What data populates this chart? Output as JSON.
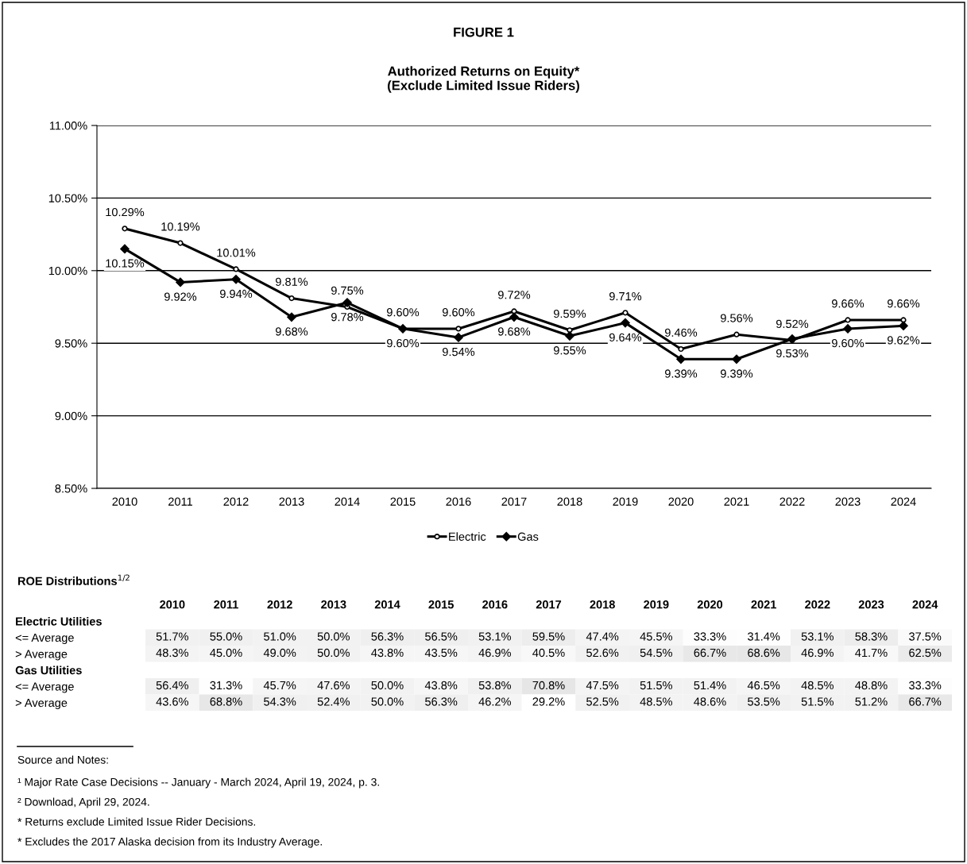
{
  "chart_data": [
    {
      "type": "line",
      "title": "FIGURE 1",
      "subtitle": "Authorized Returns on Equity*\n(Exclude Limited Issue Riders)",
      "categories": [
        "2010",
        "2011",
        "2012",
        "2013",
        "2014",
        "2015",
        "2016",
        "2017",
        "2018",
        "2019",
        "2020",
        "2021",
        "2022",
        "2023",
        "2024"
      ],
      "series": [
        {
          "name": "Electric",
          "color": "#000000",
          "marker": "circle",
          "values": [
            10.29,
            10.19,
            10.01,
            9.81,
            9.75,
            9.6,
            9.6,
            9.72,
            9.59,
            9.71,
            9.46,
            9.56,
            9.52,
            9.66,
            9.66
          ],
          "value_labels": [
            "10.29%",
            "10.19%",
            "10.01%",
            "9.81%",
            "9.75%",
            "9.60%",
            "9.60%",
            "9.72%",
            "9.59%",
            "9.71%",
            "9.46%",
            "9.56%",
            "9.52%",
            "9.66%",
            "9.66%"
          ]
        },
        {
          "name": "Gas",
          "color": "#000000",
          "marker": "diamond",
          "values": [
            10.15,
            9.92,
            9.94,
            9.68,
            9.78,
            9.6,
            9.54,
            9.68,
            9.55,
            9.64,
            9.39,
            9.39,
            9.53,
            9.6,
            9.62
          ],
          "value_labels": [
            "10.15%",
            "9.92%",
            "9.94%",
            "9.68%",
            "9.78%",
            "9.60%",
            "9.54%",
            "9.68%",
            "9.55%",
            "9.64%",
            "9.39%",
            "9.39%",
            "9.53%",
            "9.60%",
            "9.62%"
          ]
        }
      ],
      "ylim": [
        8.5,
        11.0
      ],
      "yticks": [
        {
          "value": 8.5,
          "label": "8.50%"
        },
        {
          "value": 9.0,
          "label": "9.00%"
        },
        {
          "value": 9.5,
          "label": "9.50%"
        },
        {
          "value": 10.0,
          "label": "10.00%"
        },
        {
          "value": 10.5,
          "label": "10.50%"
        },
        {
          "value": 11.0,
          "label": "11.00%"
        }
      ],
      "grid": "y",
      "legend": "bottom",
      "line_style": "solid"
    },
    {
      "type": "heatmap",
      "title": "ROE Distributions$^{1/2}$",
      "categories": [
        "2010",
        "2011",
        "2012",
        "2013",
        "2014",
        "2015",
        "2016",
        "2017",
        "2018",
        "2019",
        "2020",
        "2021",
        "2022",
        "2023",
        "2024"
      ],
      "y_categories": [
        "Electric Utilities",
        "<= Average",
        "> Average",
        "Gas Utilities",
        "<= Average",
        "> Average"
      ],
      "cells": [
        [
          null,
          null,
          null,
          null,
          null,
          null,
          null,
          null,
          null,
          null,
          null,
          null,
          null,
          null,
          null
        ],
        [
          51.7,
          55.0,
          51.0,
          50.0,
          56.3,
          56.5,
          53.1,
          59.5,
          47.4,
          45.5,
          33.3,
          31.4,
          53.1,
          58.3,
          37.5
        ],
        [
          48.3,
          45.0,
          49.0,
          50.0,
          43.8,
          43.5,
          46.9,
          40.5,
          52.6,
          54.5,
          66.7,
          68.6,
          46.9,
          41.7,
          62.5
        ],
        [
          null,
          null,
          null,
          null,
          null,
          null,
          null,
          null,
          null,
          null,
          null,
          null,
          null,
          null,
          null
        ],
        [
          56.4,
          31.3,
          45.7,
          47.6,
          50.0,
          43.8,
          53.8,
          70.8,
          47.5,
          51.5,
          51.4,
          46.5,
          48.5,
          48.8,
          33.3
        ],
        [
          43.6,
          68.8,
          54.3,
          52.4,
          50.0,
          56.3,
          46.2,
          29.2,
          52.5,
          48.5,
          48.6,
          53.5,
          51.5,
          51.2,
          66.7
        ]
      ],
      "cell_labels": [
        [
          null,
          null,
          null,
          null,
          null,
          null,
          null,
          null,
          null,
          null,
          null,
          null,
          null,
          null,
          null
        ],
        [
          "51.7%",
          "55.0%",
          "51.0%",
          "50.0%",
          "56.3%",
          "56.5%",
          "53.1%",
          "59.5%",
          "47.4%",
          "45.5%",
          "33.3%",
          "31.4%",
          "53.1%",
          "58.3%",
          "37.5%"
        ],
        [
          "48.3%",
          "45.0%",
          "49.0%",
          "50.0%",
          "43.8%",
          "43.5%",
          "46.9%",
          "40.5%",
          "52.6%",
          "54.5%",
          "66.7%",
          "68.6%",
          "46.9%",
          "41.7%",
          "62.5%"
        ],
        [
          null,
          null,
          null,
          null,
          null,
          null,
          null,
          null,
          null,
          null,
          null,
          null,
          null,
          null,
          null
        ],
        [
          "56.4%",
          "31.3%",
          "45.7%",
          "47.6%",
          "50.0%",
          "43.8%",
          "53.8%",
          "70.8%",
          "47.5%",
          "51.5%",
          "51.4%",
          "46.5%",
          "48.5%",
          "48.8%",
          "33.3%"
        ],
        [
          "43.6%",
          "68.8%",
          "54.3%",
          "52.4%",
          "50.0%",
          "56.3%",
          "46.2%",
          "29.2%",
          "52.5%",
          "48.5%",
          "48.6%",
          "53.5%",
          "51.5%",
          "51.2%",
          "66.7%"
        ]
      ],
      "annotations": [
        "Source and Notes:",
        "¹ Major Rate Case Decisions -- January - March 2024, April 19, 2024, p. 3.",
        "² Download, April 29, 2024.",
        "* Returns exclude Limited Issue Rider Decisions.",
        "* Excludes the 2017 Alaska decision from its Industry Average."
      ]
    }
  ]
}
